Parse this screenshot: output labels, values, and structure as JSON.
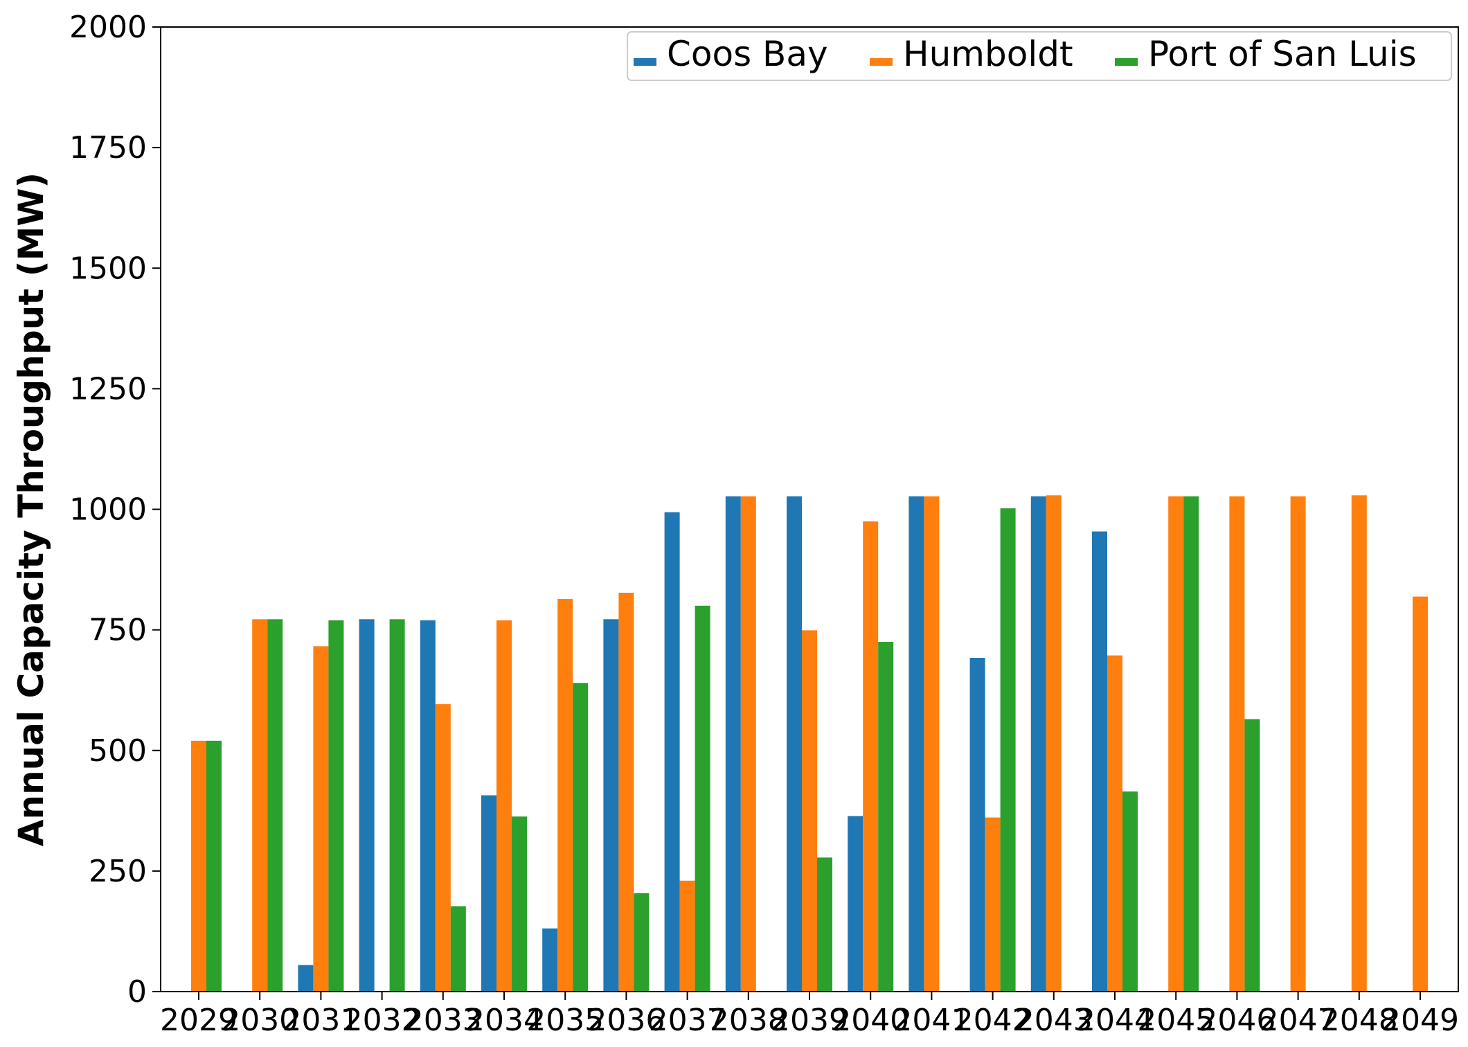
{
  "chart_data": {
    "type": "bar",
    "title": "",
    "xlabel": "",
    "ylabel": "Annual Capacity Throughput (MW)",
    "ylim": [
      0,
      2000
    ],
    "yticks": [
      0,
      250,
      500,
      750,
      1000,
      1250,
      1500,
      1750,
      2000
    ],
    "grid": false,
    "legend_position": "top-right",
    "categories": [
      "2029",
      "2030",
      "2031",
      "2032",
      "2033",
      "2034",
      "2035",
      "2036",
      "2037",
      "2038",
      "2039",
      "2040",
      "2041",
      "2042",
      "2043",
      "2044",
      "2045",
      "2046",
      "2047",
      "2048",
      "2049"
    ],
    "series": [
      {
        "name": "Coos Bay",
        "color": "#1f77b4",
        "values": [
          0,
          0,
          55,
          772,
          770,
          407,
          131,
          772,
          994,
          1027,
          1027,
          364,
          1027,
          692,
          1027,
          954,
          0,
          0,
          0,
          0,
          0
        ]
      },
      {
        "name": "Humboldt",
        "color": "#ff7f0e",
        "values": [
          520,
          772,
          716,
          0,
          596,
          770,
          814,
          827,
          230,
          1027,
          749,
          975,
          1027,
          361,
          1029,
          697,
          1027,
          1027,
          1027,
          1029,
          819
        ]
      },
      {
        "name": "Port of San Luis",
        "color": "#2ca02c",
        "values": [
          520,
          772,
          770,
          772,
          177,
          363,
          640,
          204,
          800,
          0,
          278,
          725,
          0,
          1002,
          0,
          415,
          1027,
          565,
          0,
          0,
          0
        ]
      }
    ]
  }
}
